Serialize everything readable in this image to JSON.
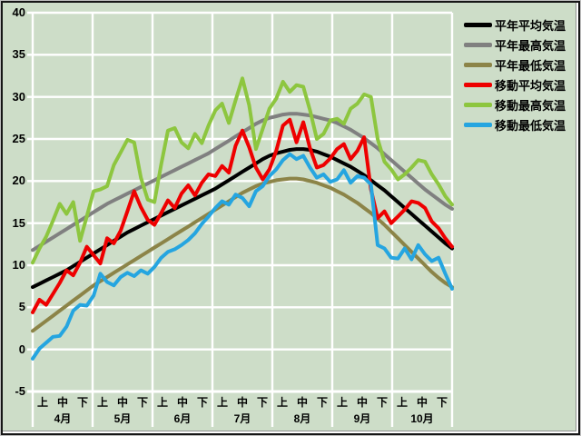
{
  "window": {
    "background_color": "#cdddc8",
    "grid_color": "#ffffff"
  },
  "legend": {
    "position": "right",
    "items": [
      {
        "label": "平年平均気温",
        "color": "#000000"
      },
      {
        "label": "平年最高気温",
        "color": "#808080"
      },
      {
        "label": "平年最低気温",
        "color": "#8c8448"
      },
      {
        "label": "移動平均気温",
        "color": "#ee0000"
      },
      {
        "label": "移動最高気温",
        "color": "#8dc63f"
      },
      {
        "label": "移動最低気温",
        "color": "#25a5e0"
      }
    ]
  },
  "chart_data": {
    "type": "line",
    "title": "",
    "grid": true,
    "legend_position": "right",
    "y_axis": {
      "min": -5,
      "max": 40,
      "step": 5,
      "tick_labels": [
        "40",
        "35",
        "30",
        "25",
        "20",
        "15",
        "10",
        "5",
        "0",
        "-5"
      ]
    },
    "x_axis": {
      "months": [
        "4月",
        "5月",
        "6月",
        "7月",
        "8月",
        "9月",
        "10月"
      ],
      "period_labels": [
        "上",
        "中",
        "下"
      ],
      "points_per_month": 9
    },
    "series": [
      {
        "name": "平年平均気温",
        "color": "#000000",
        "values": [
          7.4,
          7.8,
          8.2,
          8.6,
          9.0,
          9.4,
          9.9,
          10.4,
          10.9,
          11.4,
          11.9,
          12.4,
          12.9,
          13.4,
          13.9,
          14.3,
          14.7,
          15.1,
          15.5,
          15.9,
          16.3,
          16.7,
          17.1,
          17.5,
          17.9,
          18.3,
          18.7,
          19.1,
          19.6,
          20.1,
          20.6,
          21.1,
          21.6,
          22.1,
          22.6,
          23.0,
          23.3,
          23.5,
          23.7,
          23.8,
          23.8,
          23.7,
          23.5,
          23.2,
          22.9,
          22.5,
          22.1,
          21.7,
          21.2,
          20.7,
          20.1,
          19.5,
          18.9,
          18.2,
          17.5,
          16.8,
          16.1,
          15.4,
          14.7,
          14.0,
          13.3,
          12.6,
          12.0
        ]
      },
      {
        "name": "平年最高気温",
        "color": "#808080",
        "values": [
          11.8,
          12.3,
          12.8,
          13.3,
          13.8,
          14.3,
          14.8,
          15.3,
          15.8,
          16.3,
          16.8,
          17.3,
          17.7,
          18.1,
          18.5,
          18.9,
          19.3,
          19.7,
          20.1,
          20.5,
          20.9,
          21.3,
          21.7,
          22.1,
          22.5,
          22.9,
          23.3,
          23.8,
          24.3,
          24.8,
          25.3,
          25.8,
          26.3,
          26.8,
          27.2,
          27.5,
          27.7,
          27.9,
          28.0,
          28.0,
          27.9,
          27.8,
          27.6,
          27.4,
          27.2,
          26.9,
          26.5,
          26.1,
          25.6,
          25.1,
          24.5,
          23.9,
          23.2,
          22.5,
          21.8,
          21.1,
          20.4,
          19.7,
          19.0,
          18.4,
          17.8,
          17.2,
          16.7
        ]
      },
      {
        "name": "平年最低気温",
        "color": "#8c8448",
        "values": [
          2.2,
          2.8,
          3.4,
          4.0,
          4.6,
          5.2,
          5.8,
          6.4,
          7.0,
          7.6,
          8.1,
          8.6,
          9.1,
          9.6,
          10.1,
          10.6,
          11.1,
          11.6,
          12.1,
          12.6,
          13.1,
          13.6,
          14.1,
          14.6,
          15.1,
          15.6,
          16.1,
          16.6,
          17.1,
          17.6,
          18.1,
          18.6,
          19.0,
          19.4,
          19.7,
          19.9,
          20.1,
          20.2,
          20.3,
          20.3,
          20.2,
          20.0,
          19.8,
          19.5,
          19.2,
          18.8,
          18.4,
          17.9,
          17.4,
          16.8,
          16.2,
          15.5,
          14.8,
          14.0,
          13.2,
          12.4,
          11.6,
          10.8,
          10.0,
          9.2,
          8.5,
          7.9,
          7.4
        ]
      },
      {
        "name": "移動平均気温",
        "color": "#ee0000",
        "values": [
          4.4,
          5.9,
          5.3,
          6.6,
          7.9,
          9.4,
          8.8,
          10.3,
          12.2,
          11.2,
          10.2,
          13.2,
          12.6,
          14.1,
          16.4,
          18.8,
          16.9,
          15.4,
          14.8,
          16.2,
          17.7,
          16.8,
          18.5,
          19.5,
          18.3,
          19.8,
          20.8,
          20.6,
          21.8,
          21.0,
          24.2,
          26.0,
          24.0,
          21.6,
          20.2,
          21.4,
          23.6,
          26.6,
          27.3,
          24.6,
          27.0,
          23.9,
          21.6,
          21.9,
          22.7,
          23.8,
          24.4,
          22.6,
          23.6,
          25.2,
          19.0,
          15.6,
          16.4,
          15.0,
          15.8,
          16.6,
          17.6,
          17.4,
          16.8,
          15.2,
          14.4,
          13.2,
          12.2
        ]
      },
      {
        "name": "移動最高気温",
        "color": "#8dc63f",
        "values": [
          10.3,
          12.0,
          13.4,
          15.3,
          17.3,
          16.1,
          17.5,
          12.9,
          15.8,
          18.8,
          19.0,
          19.4,
          21.9,
          23.4,
          24.9,
          24.6,
          20.4,
          17.8,
          17.5,
          22.0,
          26.0,
          26.3,
          24.6,
          23.9,
          25.6,
          24.5,
          26.6,
          28.4,
          29.2,
          26.9,
          29.6,
          32.2,
          29.0,
          23.8,
          26.2,
          28.6,
          29.8,
          31.8,
          30.6,
          31.4,
          31.2,
          28.4,
          25.0,
          25.6,
          27.2,
          27.4,
          26.8,
          28.6,
          29.2,
          30.3,
          30.0,
          25.0,
          22.3,
          21.4,
          20.2,
          20.8,
          21.6,
          22.5,
          22.3,
          20.8,
          19.6,
          18.2,
          17.2
        ]
      },
      {
        "name": "移動最低気温",
        "color": "#25a5e0",
        "values": [
          -1.1,
          0.1,
          0.8,
          1.5,
          1.6,
          2.7,
          4.6,
          5.3,
          5.2,
          6.4,
          9.0,
          8.0,
          7.6,
          8.6,
          9.1,
          8.7,
          9.4,
          9.0,
          9.8,
          10.9,
          11.6,
          11.9,
          12.4,
          13.0,
          13.8,
          14.9,
          15.8,
          16.8,
          17.6,
          17.2,
          18.4,
          18.0,
          17.0,
          18.8,
          19.4,
          20.6,
          21.4,
          22.5,
          23.2,
          22.6,
          23.0,
          21.6,
          20.4,
          20.8,
          19.9,
          20.2,
          21.3,
          19.8,
          20.6,
          20.4,
          19.6,
          12.4,
          12.0,
          10.9,
          10.8,
          12.0,
          10.7,
          12.4,
          11.3,
          10.5,
          10.9,
          9.0,
          7.2
        ]
      }
    ]
  }
}
